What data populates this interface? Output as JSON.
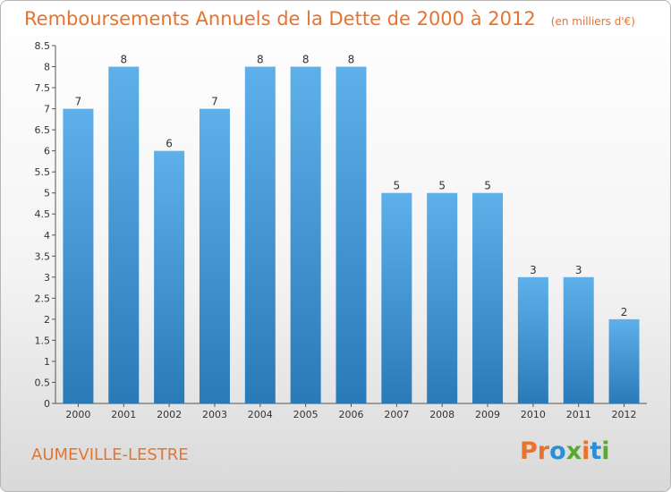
{
  "header": {
    "title": "Remboursements Annuels de la Dette de 2000 à 2012",
    "subtitle": "(en milliers d'€)"
  },
  "footer": {
    "city": "AUMEVILLE-LESTRE",
    "logo": "Proxiti"
  },
  "colors": {
    "accent": "#e8732d",
    "bar_top": "#5eb0ea",
    "bar_bottom": "#2a7ab8",
    "logo_letters": [
      "#e8732d",
      "#e8732d",
      "#2c8fd6",
      "#5aa832",
      "#e8732d",
      "#2c8fd6",
      "#5aa832"
    ]
  },
  "chart_data": {
    "type": "bar",
    "categories": [
      "2000",
      "2001",
      "2002",
      "2003",
      "2004",
      "2005",
      "2006",
      "2007",
      "2008",
      "2009",
      "2010",
      "2011",
      "2012"
    ],
    "values": [
      7,
      8,
      6,
      7,
      8,
      8,
      8,
      5,
      5,
      5,
      3,
      3,
      2
    ],
    "y_ticks": [
      "0",
      "0.5",
      "1",
      "1.5",
      "2",
      "2.5",
      "3",
      "3.5",
      "4",
      "4.5",
      "5",
      "5.5",
      "6",
      "6.5",
      "7",
      "7.5",
      "8",
      "8.5"
    ],
    "ylim": [
      0,
      8.5
    ],
    "title": "Remboursements Annuels de la Dette de 2000 à 2012",
    "xlabel": "",
    "ylabel": "",
    "grid": false,
    "data_labels": true
  }
}
